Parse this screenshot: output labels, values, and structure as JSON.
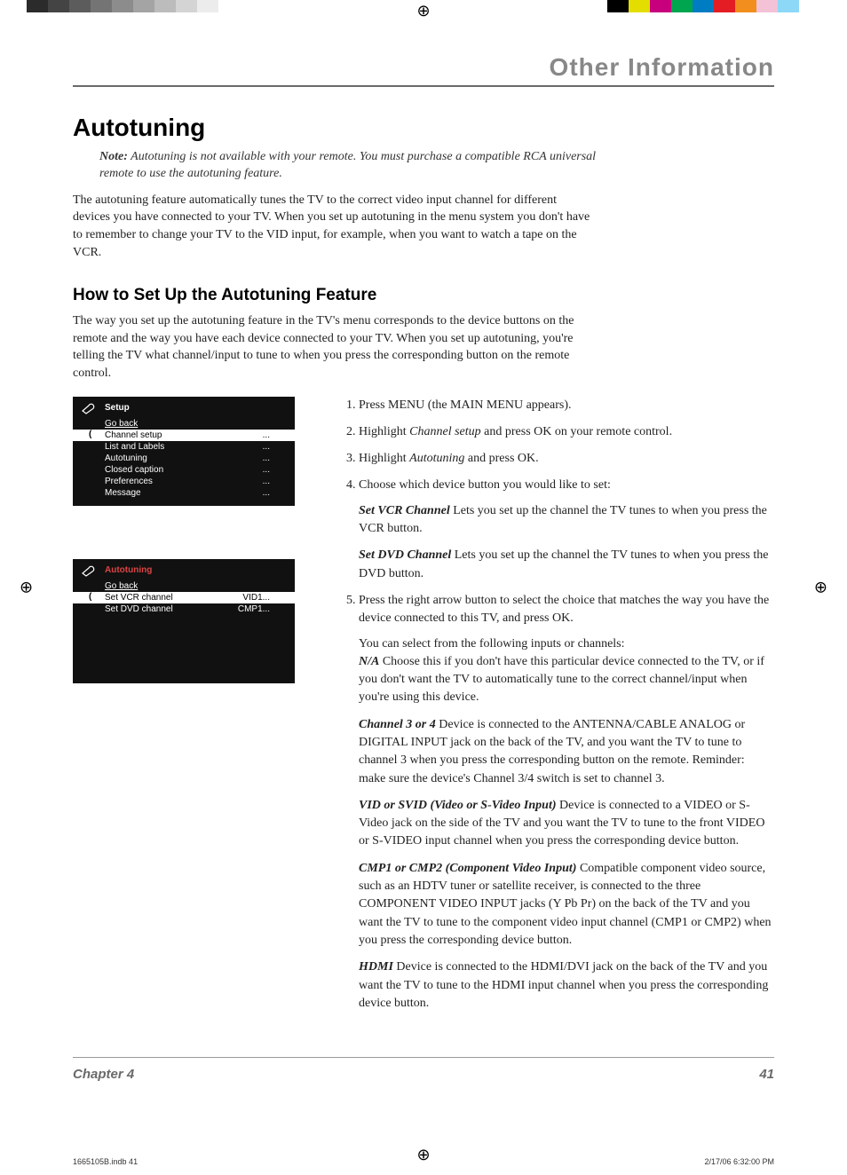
{
  "colorbar": {
    "grays": [
      "#2b2b2b",
      "#444444",
      "#5c5c5c",
      "#747474",
      "#8c8c8c",
      "#a4a4a4",
      "#bcbcbc",
      "#d4d4d4",
      "#ececec",
      "#ffffff"
    ],
    "colors": [
      "#000000",
      "#e4de00",
      "#c8007e",
      "#00a54f",
      "#007cc3",
      "#e31d23",
      "#f18e1d",
      "#f4c2d7",
      "#8dd7f7",
      "#ffffff"
    ]
  },
  "header": {
    "title": "Other Information"
  },
  "h1": "Autotuning",
  "note_bold": "Note:",
  "note": "Autotuning is not available with your remote. You must purchase a compatible RCA universal remote to use the autotuning feature.",
  "intro": "The autotuning feature automatically tunes the TV to the correct video input channel for different devices you have connected to your TV. When you set up autotuning in the menu system you don't have to remember to change your TV to the VID input, for example, when you want to watch a tape on the VCR.",
  "h2": "How to Set Up the Autotuning Feature",
  "para2": "The way you set up the autotuning feature in the TV's menu corresponds to the device buttons on the remote and the way you have each device connected to your TV. When you set up autotuning, you're telling the TV what channel/input to tune to when you press the corresponding button on the remote control.",
  "setup_menu": {
    "title": "Setup",
    "goback": "Go back",
    "items": [
      {
        "label": "Channel setup",
        "val": "...",
        "selected": true
      },
      {
        "label": "List and Labels",
        "val": "..."
      },
      {
        "label": "Autotuning",
        "val": "..."
      },
      {
        "label": "Closed caption",
        "val": "..."
      },
      {
        "label": "Preferences",
        "val": "..."
      },
      {
        "label": "Message",
        "val": "..."
      }
    ]
  },
  "auto_menu": {
    "title": "Autotuning",
    "goback": "Go back",
    "items": [
      {
        "label": "Set VCR channel",
        "val": "VID1...",
        "selected": true
      },
      {
        "label": "Set DVD channel",
        "val": "CMP1..."
      }
    ]
  },
  "steps": {
    "s1": "Press MENU (the MAIN MENU appears).",
    "s2a": "Highlight ",
    "s2i": "Channel setup",
    "s2b": " and press OK on your remote control.",
    "s3a": "Highlight ",
    "s3i": "Autotuning",
    "s3b": " and press OK.",
    "s4": "Choose which device button you would like to set:",
    "s4vcr_b": "Set VCR Channel",
    "s4vcr": "  Lets you set up the channel the TV tunes to when you press the VCR button.",
    "s4dvd_b": "Set DVD Channel",
    "s4dvd": "  Lets you set up the channel the TV tunes to when you press the DVD button.",
    "s5": "Press the right arrow button to select the choice that matches the way you have the device connected to this TV, and press OK.",
    "s5sub1": "You can select from the following inputs or channels:",
    "s5na_b": "N/A",
    "s5na": "  Choose this if you don't have this particular device connected to the TV, or if you don't want the TV to automatically tune to the correct channel/input when you're using this device.",
    "s5ch_b": "Channel 3 or 4",
    "s5ch": "  Device is connected to the ANTENNA/CABLE ANALOG or DIGITAL INPUT jack on the back of the TV, and you want the TV to tune to channel 3 when you press the corresponding button on the remote. Reminder: make sure the device's Channel 3/4 switch is set to channel 3.",
    "s5vid_b": "VID or SVID (Video or S-Video Input)",
    "s5vid": "   Device is connected to a VIDEO or S-Video jack on the side of the TV and you want the TV to tune to the front VIDEO or S-VIDEO input channel when you press the corresponding device button.",
    "s5cmp_b": "CMP1 or CMP2 (Component Video Input)",
    "s5cmp": "   Compatible component video source, such as an HDTV tuner or satellite receiver, is connected to the three COMPONENT VIDEO INPUT jacks (Y Pb Pr) on the back of the TV and you want the TV to tune to the component video input channel (CMP1 or CMP2) when you press the corresponding device button.",
    "s5hdmi_b": "HDMI",
    "s5hdmi": "   Device is connected to the HDMI/DVI jack on the back of the TV and you want the TV to tune to the HDMI input channel when you press the corresponding device button."
  },
  "footer": {
    "chapter": "Chapter 4",
    "page": "41"
  },
  "micro": {
    "file": "1665105B.indb   41",
    "stamp": "2/17/06   6:32:00 PM"
  }
}
